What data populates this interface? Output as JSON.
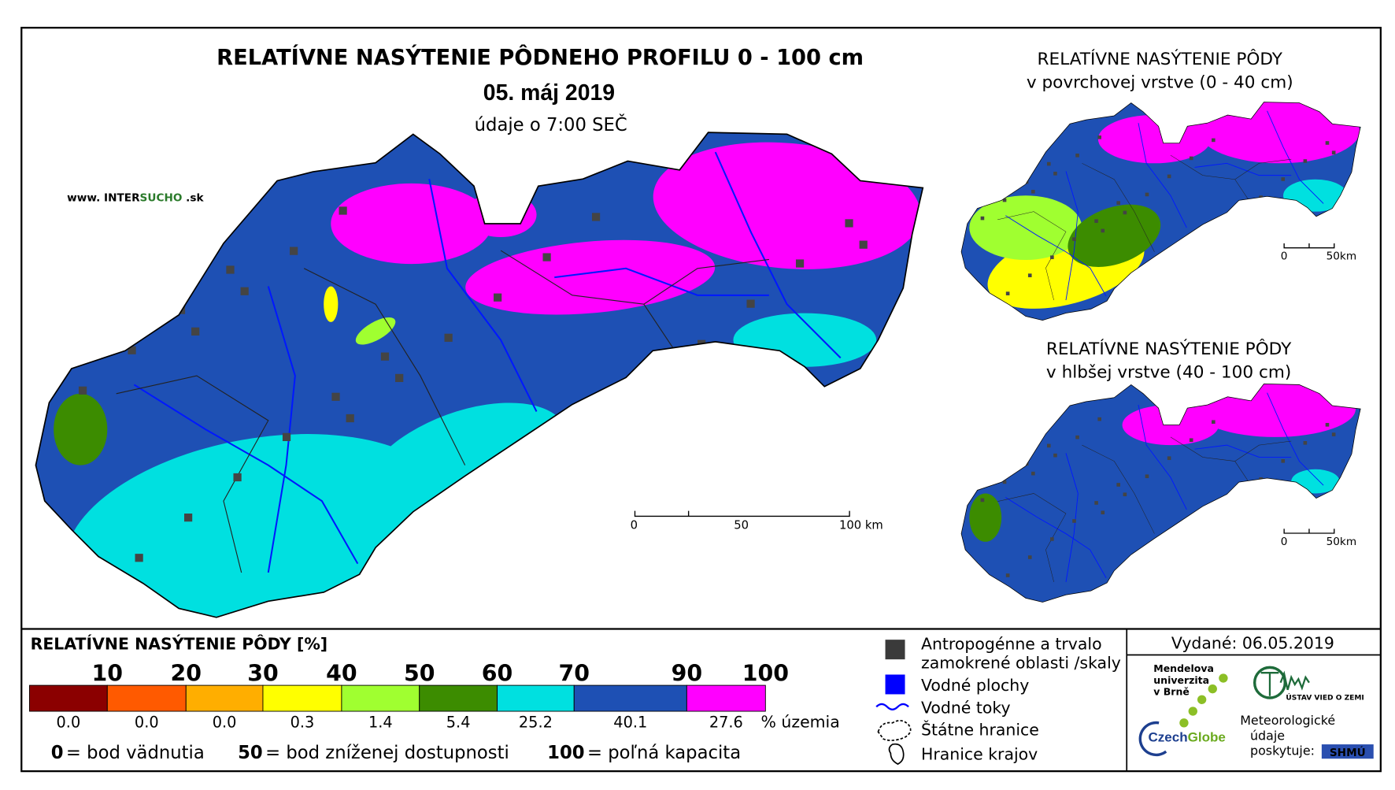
{
  "title": "RELATÍVNE NASÝTENIE PÔDNEHO PROFILU 0 - 100 cm",
  "date": "05. máj 2019",
  "time_note": "údaje o 7:00 SEČ",
  "website": {
    "prefix": "www. INTER",
    "highlight": "SUCHO",
    "suffix": " .sk"
  },
  "main_scale": [
    "0",
    "50",
    "100 km"
  ],
  "insets": [
    {
      "title": "RELATÍVNE NASÝTENIE PÔDY",
      "subtitle": "v povrchovej vrstve (0 - 40 cm)",
      "scale": [
        "0",
        "50km"
      ]
    },
    {
      "title": "RELATÍVNE NASÝTENIE PÔDY",
      "subtitle": "v hlbšej vrstve (40 - 100 cm)",
      "scale": [
        "0",
        "50km"
      ]
    }
  ],
  "legend": {
    "title": "RELATÍVNE NASÝTENIE PÔDY [%]",
    "thresholds": [
      "10",
      "20",
      "30",
      "40",
      "50",
      "60",
      "70",
      "90",
      "100"
    ],
    "classes": [
      {
        "color": "#8b0000",
        "share": "0.0"
      },
      {
        "color": "#ff5a00",
        "share": "0.0"
      },
      {
        "color": "#ffae00",
        "share": "0.0"
      },
      {
        "color": "#ffff00",
        "share": "0.3"
      },
      {
        "color": "#a0ff30",
        "share": "1.4"
      },
      {
        "color": "#3c8c00",
        "share": "5.4"
      },
      {
        "color": "#00e0e0",
        "share": "25.2"
      },
      {
        "color": "#1e50b4",
        "share": "40.1"
      },
      {
        "color": "#ff00ff",
        "share": "27.6"
      }
    ],
    "unit": "% územia",
    "notes": [
      {
        "value": "0",
        "text": "= bod vädnutia"
      },
      {
        "value": "50",
        "text": "= bod zníženej dostupnosti"
      },
      {
        "value": "100",
        "text": "= poľná kapacita"
      }
    ]
  },
  "symbols": {
    "anthropogenic": [
      "Antropogénne a trvalo",
      "zamokrené oblasti /skaly"
    ],
    "water_bodies": "Vodné plochy",
    "rivers": "Vodné toky",
    "state_border": "Štátne hranice",
    "region_border": "Hranice krajov"
  },
  "issued": "Vydané: 06.05.2019",
  "logos": {
    "mendel": [
      "Mendelova",
      "univerzita",
      "v Brně"
    ],
    "czechglobe": [
      "Czech",
      "Globe"
    ],
    "ig": "ÚSTAV VIED O ZEMI",
    "meteo": [
      "Meteorologické",
      "údaje",
      "poskytuje:"
    ],
    "shmu": "SHMÚ"
  }
}
